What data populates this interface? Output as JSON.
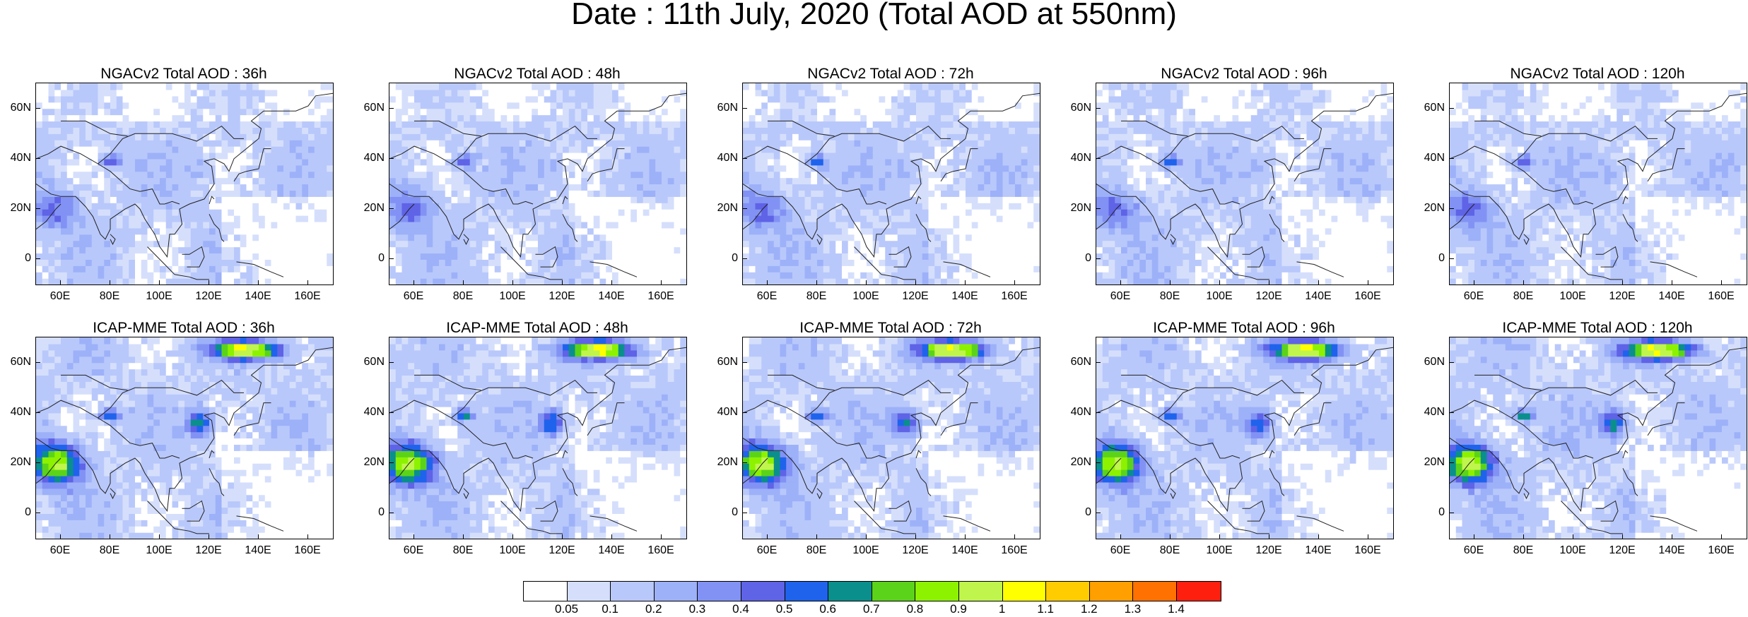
{
  "title": "Date : 11th July, 2020 (Total AOD at 550nm)",
  "panels": [
    {
      "title": "NGACv2 Total AOD : 36h",
      "model": "NGACv2",
      "lead": "36h"
    },
    {
      "title": "NGACv2 Total AOD : 48h",
      "model": "NGACv2",
      "lead": "48h"
    },
    {
      "title": "NGACv2 Total AOD : 72h",
      "model": "NGACv2",
      "lead": "72h"
    },
    {
      "title": "NGACv2 Total AOD : 96h",
      "model": "NGACv2",
      "lead": "96h"
    },
    {
      "title": "NGACv2 Total AOD : 120h",
      "model": "NGACv2",
      "lead": "120h"
    },
    {
      "title": "ICAP-MME Total AOD : 36h",
      "model": "ICAP-MME",
      "lead": "36h"
    },
    {
      "title": "ICAP-MME Total AOD : 48h",
      "model": "ICAP-MME",
      "lead": "48h"
    },
    {
      "title": "ICAP-MME Total AOD : 72h",
      "model": "ICAP-MME",
      "lead": "72h"
    },
    {
      "title": "ICAP-MME Total AOD : 96h",
      "model": "ICAP-MME",
      "lead": "96h"
    },
    {
      "title": "ICAP-MME Total AOD : 120h",
      "model": "ICAP-MME",
      "lead": "120h"
    }
  ],
  "axes": {
    "x_ticks": [
      "60E",
      "80E",
      "100E",
      "120E",
      "140E",
      "160E"
    ],
    "x_values": [
      60,
      80,
      100,
      120,
      140,
      160
    ],
    "x_range": [
      50,
      170
    ],
    "y_ticks": [
      "60N",
      "40N",
      "20N",
      "0"
    ],
    "y_values": [
      60,
      40,
      20,
      0
    ],
    "y_range": [
      -10,
      70
    ]
  },
  "colorbar": {
    "labels": [
      "0.05",
      "0.1",
      "0.2",
      "0.3",
      "0.4",
      "0.5",
      "0.6",
      "0.7",
      "0.8",
      "0.9",
      "1",
      "1.1",
      "1.2",
      "1.3",
      "1.4"
    ],
    "colors": [
      "#ffffff",
      "#d5dffc",
      "#b9c8fb",
      "#9db1f9",
      "#8292f4",
      "#5f63e6",
      "#1f63ec",
      "#0a8f8c",
      "#5bd31a",
      "#8cf200",
      "#bff54c",
      "#ffff00",
      "#ffcc00",
      "#ff9f00",
      "#ff7100",
      "#ff1f0f"
    ]
  }
}
